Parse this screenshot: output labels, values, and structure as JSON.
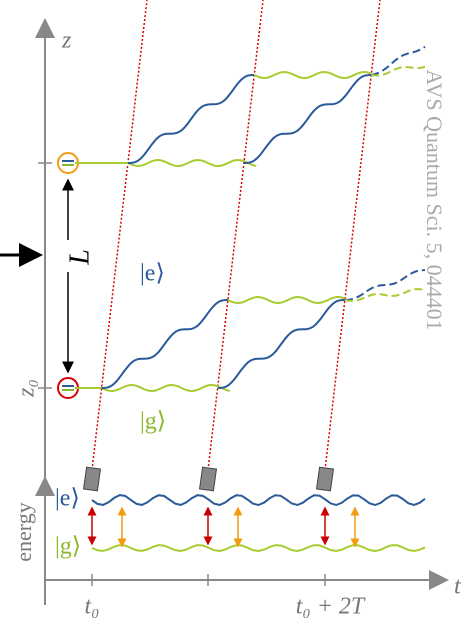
{
  "axis_labels": {
    "z": "z",
    "z0": "z₀",
    "L": "L",
    "energy": "energy",
    "t": "t",
    "t0": "t₀",
    "t0_2T": "t₀ + 2T"
  },
  "states": {
    "e_top": "|e⟩",
    "g_top": "|g⟩",
    "e_bottom": "|e⟩",
    "g_bottom": "|g⟩"
  },
  "citation": "AVS Quantum Sci. 5, 044401"
}
